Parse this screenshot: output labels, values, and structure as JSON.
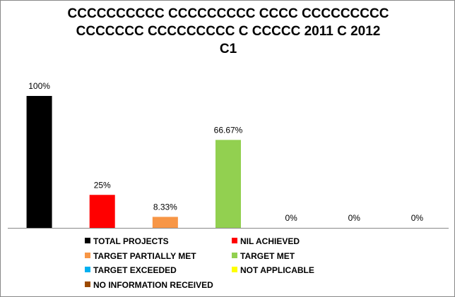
{
  "chart_data": {
    "type": "bar",
    "title_lines": [
      "CCCCCCCCCC CCCCCCCCC CCCC CCCCCCCCC",
      "CCCCCCC CCCCCCCCC C CCCCC 2011 C 2012",
      "C1"
    ],
    "categories": [
      "TOTAL PROJECTS",
      "NIL ACHIEVED",
      "TARGET PARTIALLY MET",
      "TARGET MET",
      "TARGET EXCEEDED",
      "NOT APPLICABLE",
      "NO INFORMATION RECEIVED"
    ],
    "values": [
      100,
      25,
      8.33,
      66.67,
      0,
      0,
      0
    ],
    "data_labels": [
      "100%",
      "25%",
      "8.33%",
      "66.67%",
      "0%",
      "0%",
      "0%"
    ],
    "colors": [
      "#000000",
      "#ff0000",
      "#f79646",
      "#92d050",
      "#00b0f0",
      "#ffff00",
      "#9c4a00"
    ],
    "ylim": [
      0,
      100
    ],
    "xlabel": "",
    "ylabel": "",
    "grid": false,
    "legend_position": "bottom"
  }
}
